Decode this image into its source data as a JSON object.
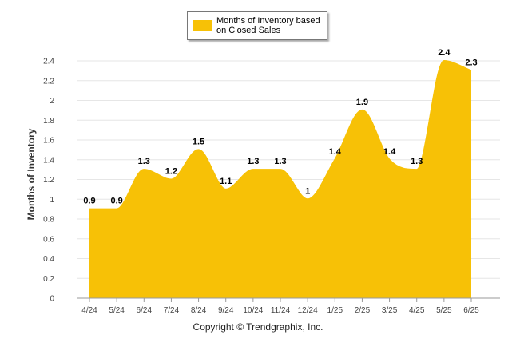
{
  "legend": {
    "label": "Months of Inventory based\non Closed Sales"
  },
  "copyright": "Copyright © Trendgraphix, Inc.",
  "chart_data": {
    "type": "area",
    "categories": [
      "4/24",
      "5/24",
      "6/24",
      "7/24",
      "8/24",
      "9/24",
      "10/24",
      "11/24",
      "12/24",
      "1/25",
      "2/25",
      "3/25",
      "4/25",
      "5/25",
      "6/25"
    ],
    "series": [
      {
        "name": "Months of Inventory based on Closed Sales",
        "values": [
          0.9,
          0.9,
          1.3,
          1.2,
          1.5,
          1.1,
          1.3,
          1.3,
          1,
          1.4,
          1.9,
          1.4,
          1.3,
          2.4,
          2.3
        ],
        "data_labels": [
          "0.9",
          "0.9",
          "1.3",
          "1.2",
          "1.5",
          "1.1",
          "1.3",
          "1.3",
          "1",
          "1.4",
          "1.9",
          "1.4",
          "1.3",
          "2.4",
          "2.3"
        ]
      }
    ],
    "ylabel": "Months of Inventory",
    "xlabel": "",
    "ylim": [
      0,
      2.4
    ],
    "yticks": [
      "0",
      "0.2",
      "0.4",
      "0.6",
      "0.8",
      "1",
      "1.2",
      "1.4",
      "1.6",
      "1.8",
      "2",
      "2.2",
      "2.4"
    ],
    "grid": true,
    "legend_position": "top-center",
    "color": "#F7C106"
  }
}
